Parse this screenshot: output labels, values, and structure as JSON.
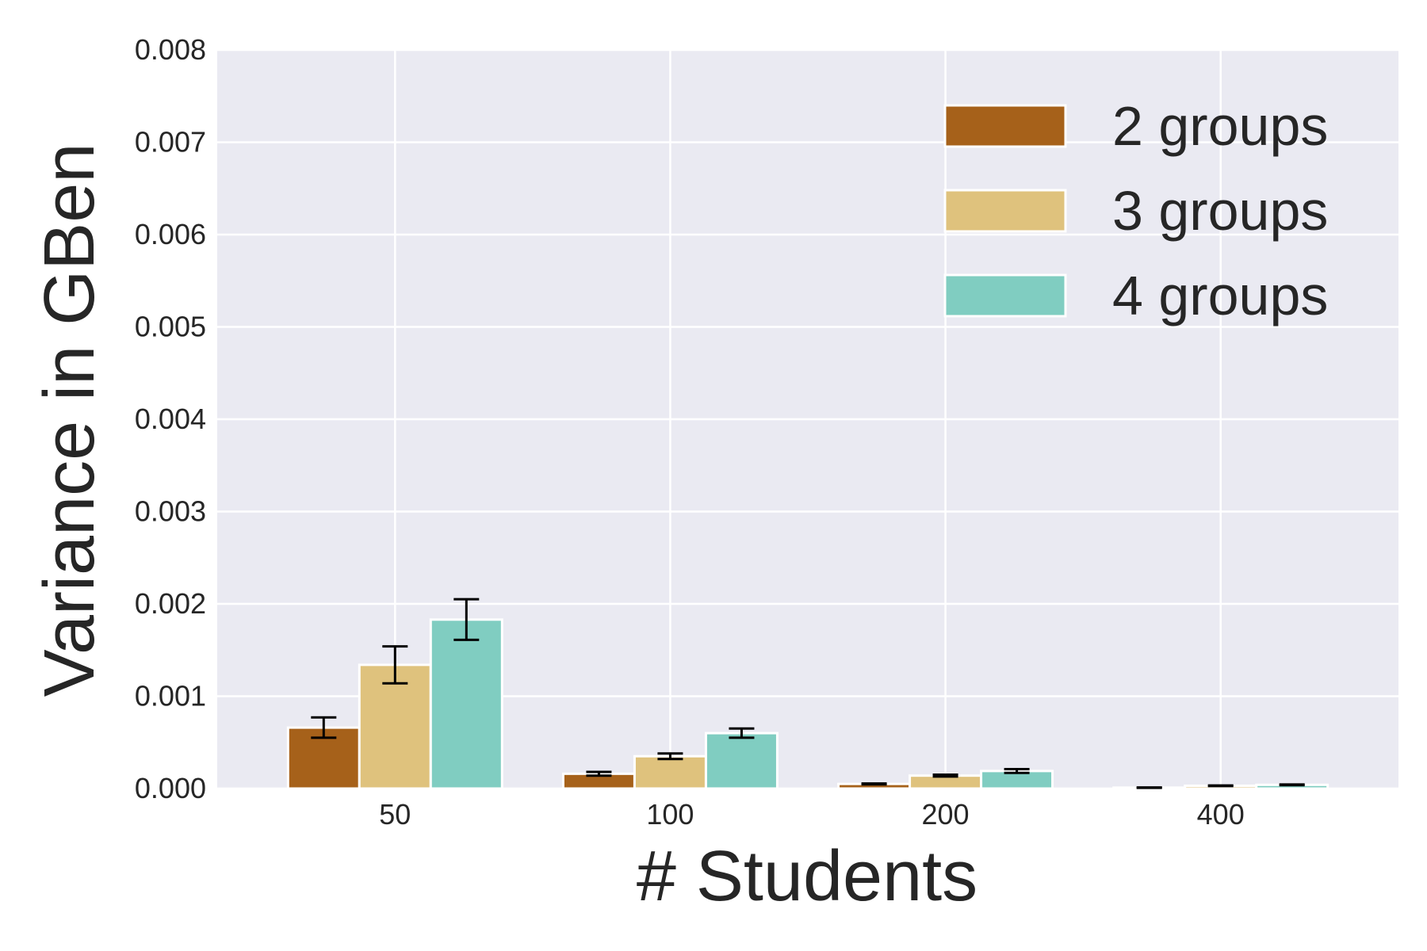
{
  "chart_data": {
    "type": "bar",
    "xlabel": "# Students",
    "ylabel": "Variance in GBen",
    "categories": [
      "50",
      "100",
      "200",
      "400"
    ],
    "ylim": [
      0,
      0.008
    ],
    "yticks": [
      "0.000",
      "0.001",
      "0.002",
      "0.003",
      "0.004",
      "0.005",
      "0.006",
      "0.007",
      "0.008"
    ],
    "grid": true,
    "legend_position": "top-right",
    "series": [
      {
        "name": "2 groups",
        "color": "#a6611a",
        "values": [
          0.00066,
          0.00016,
          5e-05,
          1e-05
        ],
        "errors": [
          0.00011,
          2e-05,
          5e-06,
          2e-06
        ]
      },
      {
        "name": "3 groups",
        "color": "#dfc27d",
        "values": [
          0.00134,
          0.00035,
          0.00014,
          3e-05
        ],
        "errors": [
          0.0002,
          3e-05,
          1e-05,
          3e-06
        ]
      },
      {
        "name": "4 groups",
        "color": "#80cdc1",
        "values": [
          0.00183,
          0.0006,
          0.00019,
          4e-05
        ],
        "errors": [
          0.00022,
          5e-05,
          2e-05,
          4e-06
        ]
      }
    ]
  }
}
